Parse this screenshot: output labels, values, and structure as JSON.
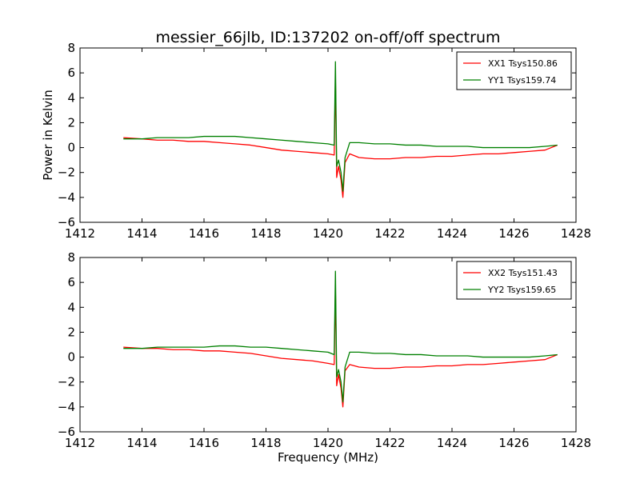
{
  "chart_data": {
    "title": "messier_66jlb, ID:137202 on-off/off spectrum",
    "xlabel": "Frequency (MHz)",
    "ylabel": "Power in Kelvin",
    "panels": [
      {
        "type": "line",
        "xlim": [
          1412,
          1428
        ],
        "ylim": [
          -6,
          8
        ],
        "xticks": [
          1412,
          1414,
          1416,
          1418,
          1420,
          1422,
          1424,
          1426,
          1428
        ],
        "yticks": [
          -6,
          -4,
          -2,
          0,
          2,
          4,
          6,
          8
        ],
        "legend_position": "top-right",
        "series": [
          {
            "name": "XX1 Tsys150.86",
            "color": "#ff0000",
            "x": [
              1413.4,
              1414.0,
              1414.5,
              1415.0,
              1415.5,
              1416.0,
              1416.5,
              1417.0,
              1417.5,
              1418.0,
              1418.5,
              1419.0,
              1419.5,
              1420.0,
              1420.2,
              1420.24,
              1420.28,
              1420.34,
              1420.42,
              1420.48,
              1420.55,
              1420.7,
              1421.0,
              1421.5,
              1422.0,
              1422.5,
              1423.0,
              1423.5,
              1424.0,
              1424.5,
              1425.0,
              1425.5,
              1426.0,
              1426.5,
              1427.0,
              1427.4
            ],
            "y": [
              0.8,
              0.7,
              0.6,
              0.6,
              0.5,
              0.5,
              0.4,
              0.3,
              0.2,
              0.0,
              -0.2,
              -0.3,
              -0.4,
              -0.5,
              -0.6,
              5.6,
              -2.4,
              -1.5,
              -2.6,
              -4.0,
              -1.2,
              -0.5,
              -0.8,
              -0.9,
              -0.9,
              -0.8,
              -0.8,
              -0.7,
              -0.7,
              -0.6,
              -0.5,
              -0.5,
              -0.4,
              -0.3,
              -0.2,
              0.2
            ]
          },
          {
            "name": "YY1 Tsys159.74",
            "color": "#008000",
            "x": [
              1413.4,
              1414.0,
              1414.5,
              1415.0,
              1415.5,
              1416.0,
              1416.5,
              1417.0,
              1417.5,
              1418.0,
              1418.5,
              1419.0,
              1419.5,
              1420.0,
              1420.2,
              1420.24,
              1420.28,
              1420.34,
              1420.42,
              1420.48,
              1420.55,
              1420.7,
              1421.0,
              1421.5,
              1422.0,
              1422.5,
              1423.0,
              1423.5,
              1424.0,
              1424.5,
              1425.0,
              1425.5,
              1426.0,
              1426.5,
              1427.0,
              1427.4
            ],
            "y": [
              0.7,
              0.7,
              0.8,
              0.8,
              0.8,
              0.9,
              0.9,
              0.9,
              0.8,
              0.7,
              0.6,
              0.5,
              0.4,
              0.3,
              0.2,
              6.9,
              -1.5,
              -1.0,
              -2.0,
              -3.5,
              -0.8,
              0.4,
              0.4,
              0.3,
              0.3,
              0.2,
              0.2,
              0.1,
              0.1,
              0.1,
              0.0,
              0.0,
              0.0,
              0.0,
              0.1,
              0.2
            ]
          }
        ]
      },
      {
        "type": "line",
        "xlim": [
          1412,
          1428
        ],
        "ylim": [
          -6,
          8
        ],
        "xticks": [
          1412,
          1414,
          1416,
          1418,
          1420,
          1422,
          1424,
          1426,
          1428
        ],
        "yticks": [
          -6,
          -4,
          -2,
          0,
          2,
          4,
          6,
          8
        ],
        "legend_position": "top-right",
        "series": [
          {
            "name": "XX2 Tsys151.43",
            "color": "#ff0000",
            "x": [
              1413.4,
              1414.0,
              1414.5,
              1415.0,
              1415.5,
              1416.0,
              1416.5,
              1417.0,
              1417.5,
              1418.0,
              1418.5,
              1419.0,
              1419.5,
              1420.0,
              1420.2,
              1420.24,
              1420.28,
              1420.34,
              1420.42,
              1420.48,
              1420.55,
              1420.7,
              1421.0,
              1421.5,
              1422.0,
              1422.5,
              1423.0,
              1423.5,
              1424.0,
              1424.5,
              1425.0,
              1425.5,
              1426.0,
              1426.5,
              1427.0,
              1427.4
            ],
            "y": [
              0.8,
              0.7,
              0.7,
              0.6,
              0.6,
              0.5,
              0.5,
              0.4,
              0.3,
              0.1,
              -0.1,
              -0.2,
              -0.3,
              -0.5,
              -0.6,
              5.5,
              -2.3,
              -1.4,
              -2.5,
              -4.0,
              -1.1,
              -0.6,
              -0.8,
              -0.9,
              -0.9,
              -0.8,
              -0.8,
              -0.7,
              -0.7,
              -0.6,
              -0.6,
              -0.5,
              -0.4,
              -0.3,
              -0.2,
              0.2
            ]
          },
          {
            "name": "YY2 Tsys159.65",
            "color": "#008000",
            "x": [
              1413.4,
              1414.0,
              1414.5,
              1415.0,
              1415.5,
              1416.0,
              1416.5,
              1417.0,
              1417.5,
              1418.0,
              1418.5,
              1419.0,
              1419.5,
              1420.0,
              1420.2,
              1420.24,
              1420.28,
              1420.34,
              1420.42,
              1420.48,
              1420.55,
              1420.7,
              1421.0,
              1421.5,
              1422.0,
              1422.5,
              1423.0,
              1423.5,
              1424.0,
              1424.5,
              1425.0,
              1425.5,
              1426.0,
              1426.5,
              1427.0,
              1427.4
            ],
            "y": [
              0.7,
              0.7,
              0.8,
              0.8,
              0.8,
              0.8,
              0.9,
              0.9,
              0.8,
              0.8,
              0.7,
              0.6,
              0.5,
              0.4,
              0.2,
              6.9,
              -1.6,
              -1.0,
              -2.0,
              -3.6,
              -0.8,
              0.4,
              0.4,
              0.3,
              0.3,
              0.2,
              0.2,
              0.1,
              0.1,
              0.1,
              0.0,
              0.0,
              0.0,
              0.0,
              0.1,
              0.2
            ]
          }
        ]
      }
    ]
  }
}
